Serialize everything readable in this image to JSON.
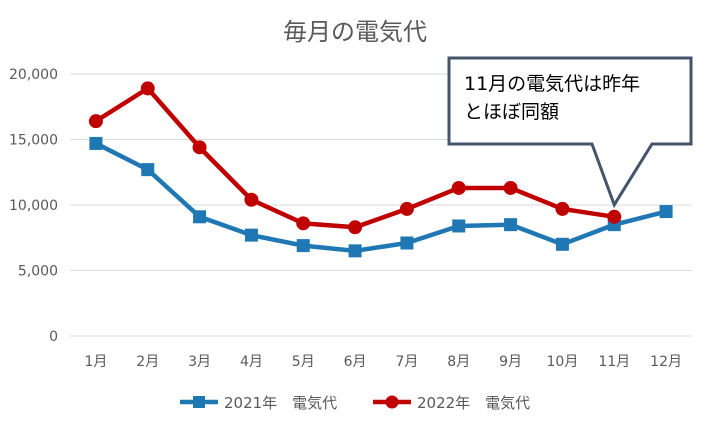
{
  "chart_data": {
    "type": "line",
    "title": "毎月の電気代",
    "categories": [
      "1月",
      "2月",
      "3月",
      "4月",
      "5月",
      "6月",
      "7月",
      "8月",
      "9月",
      "10月",
      "11月",
      "12月"
    ],
    "ylim": [
      0,
      20000
    ],
    "yticks": [
      "0",
      "5,000",
      "10,000",
      "15,000",
      "20,000"
    ],
    "grid": true,
    "legend_position": "bottom",
    "series": [
      {
        "name": "2021年　電気代",
        "color": "#1f77b4",
        "marker": "square",
        "values": [
          14700,
          12700,
          9100,
          7700,
          6900,
          6500,
          7100,
          8400,
          8500,
          7000,
          8500,
          9500
        ]
      },
      {
        "name": "2022年　電気代",
        "color": "#c00000",
        "marker": "circle",
        "values": [
          16400,
          18900,
          14400,
          10400,
          8600,
          8300,
          9700,
          11300,
          11300,
          9700,
          9100,
          null
        ]
      }
    ],
    "annotation": {
      "lines": [
        "11月の電気代は昨年",
        "とほぼ同額"
      ],
      "points_to": "11月"
    }
  }
}
